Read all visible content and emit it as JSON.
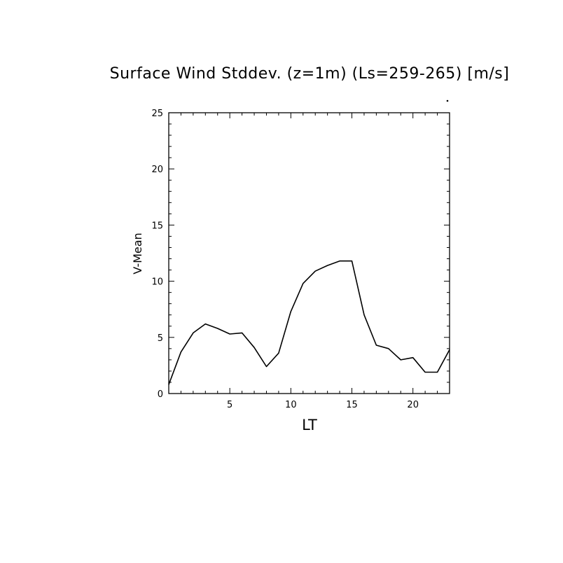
{
  "chart_data": {
    "type": "line",
    "title": "Surface Wind Stddev. (z=1m) (Ls=259-265) [m/s]",
    "xlabel": "LT",
    "ylabel": "V-Mean",
    "xlim": [
      0,
      23
    ],
    "ylim": [
      0,
      25
    ],
    "xticks": [
      5,
      10,
      15,
      20
    ],
    "yticks": [
      0,
      5,
      10,
      15,
      20,
      25
    ],
    "grid": false,
    "series": [
      {
        "x": [
          0,
          1,
          2,
          3,
          4,
          5,
          6,
          7,
          8,
          9,
          10,
          11,
          12,
          13,
          14,
          15,
          16,
          17,
          18,
          19,
          20,
          21,
          22,
          23
        ],
        "values": [
          0.8,
          3.7,
          5.4,
          6.2,
          5.8,
          5.3,
          5.4,
          4.1,
          2.4,
          3.6,
          7.3,
          9.8,
          10.9,
          11.4,
          11.8,
          11.8,
          7.0,
          4.3,
          4.0,
          3.0,
          3.2,
          1.9,
          1.9,
          3.9
        ]
      }
    ]
  }
}
